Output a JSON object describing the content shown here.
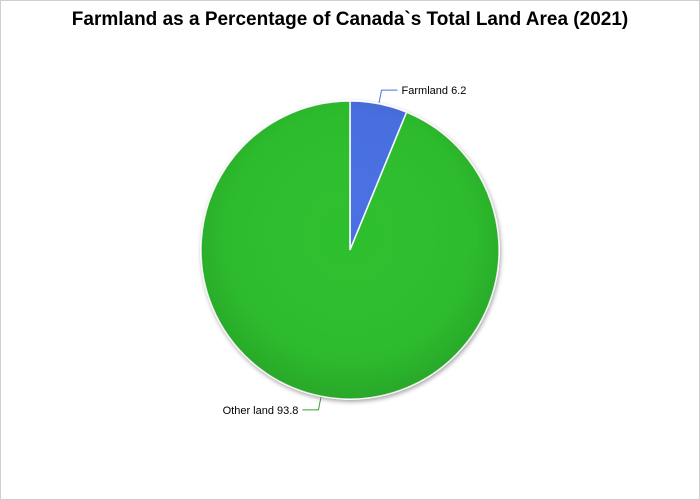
{
  "chart_data": {
    "type": "pie",
    "title": "Farmland as a Percentage of Canada`s Total Land Area (2021)",
    "slices": [
      {
        "label": "Farmland",
        "value": 6.2,
        "value_text": "6.2",
        "color": "#4a6fe3",
        "leader_color": "#4a6fe3"
      },
      {
        "label": "Other land",
        "value": 93.8,
        "value_text": "93.8",
        "color": "#2fbf2f",
        "leader_color": "#2fa52f"
      }
    ],
    "start_angle": "12 o'clock",
    "direction": "clockwise",
    "legend": "none"
  }
}
